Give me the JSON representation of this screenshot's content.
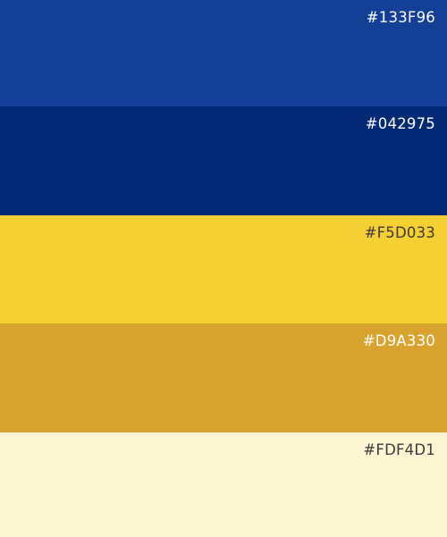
{
  "palette": {
    "swatches": [
      {
        "hex_label": "#133F96",
        "color": "#133F96",
        "text_color": "#FFFFFF"
      },
      {
        "hex_label": "#042975",
        "color": "#042975",
        "text_color": "#FFFFFF"
      },
      {
        "hex_label": "#F5D033",
        "color": "#F5D033",
        "text_color": "#3A3A3A"
      },
      {
        "hex_label": "#D9A330",
        "color": "#D9A330",
        "text_color": "#FFFFFF"
      },
      {
        "hex_label": "#FDF4D1",
        "color": "#FDF4D1",
        "text_color": "#3A3A3A"
      }
    ]
  }
}
